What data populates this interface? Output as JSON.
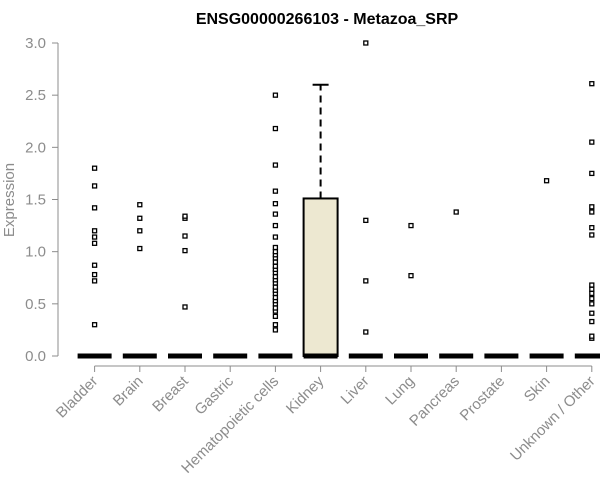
{
  "chart_data": {
    "type": "box",
    "title": "ENSG00000266103 - Metazoa_SRP",
    "xlabel": "",
    "ylabel": "Expression",
    "ylim": [
      0,
      3.0
    ],
    "yticks": [
      "0.0",
      "0.5",
      "1.0",
      "1.5",
      "2.0",
      "2.5",
      "3.0"
    ],
    "categories": [
      "Bladder",
      "Brain",
      "Breast",
      "Gastric",
      "Hematopoietic cells",
      "Kidney",
      "Liver",
      "Lung",
      "Pancreas",
      "Prostate",
      "Skin",
      "Unknown / Other"
    ],
    "boxes": [
      {
        "category": "Bladder",
        "q1": 0,
        "median": 0,
        "q3": 0,
        "whisker_low": 0,
        "whisker_high": 0,
        "outliers": [
          0.3,
          0.72,
          0.78,
          0.87,
          1.08,
          1.14,
          1.2,
          1.42,
          1.63,
          1.8
        ]
      },
      {
        "category": "Brain",
        "q1": 0,
        "median": 0,
        "q3": 0,
        "whisker_low": 0,
        "whisker_high": 0,
        "outliers": [
          1.03,
          1.2,
          1.32,
          1.45
        ]
      },
      {
        "category": "Breast",
        "q1": 0,
        "median": 0,
        "q3": 0,
        "whisker_low": 0,
        "whisker_high": 0,
        "outliers": [
          0.47,
          1.01,
          1.15,
          1.32,
          1.34
        ]
      },
      {
        "category": "Gastric",
        "q1": 0,
        "median": 0,
        "q3": 0,
        "whisker_low": 0,
        "whisker_high": 0,
        "outliers": []
      },
      {
        "category": "Hematopoietic cells",
        "q1": 0,
        "median": 0,
        "q3": 0,
        "whisker_low": 0,
        "whisker_high": 0,
        "outliers": [
          0.25,
          0.3,
          0.38,
          0.43,
          0.46,
          0.5,
          0.53,
          0.56,
          0.6,
          0.63,
          0.66,
          0.7,
          0.73,
          0.76,
          0.8,
          0.83,
          0.86,
          0.9,
          0.94,
          0.97,
          1.0,
          1.04,
          1.14,
          1.25,
          1.36,
          1.46,
          1.58,
          1.83,
          2.18,
          2.5
        ]
      },
      {
        "category": "Kidney",
        "q1": 0,
        "median": 0,
        "q3": 1.51,
        "whisker_low": 0,
        "whisker_high": 2.6,
        "outliers": []
      },
      {
        "category": "Liver",
        "q1": 0,
        "median": 0,
        "q3": 0,
        "whisker_low": 0,
        "whisker_high": 0,
        "outliers": [
          0.23,
          0.72,
          1.3,
          3.0
        ]
      },
      {
        "category": "Lung",
        "q1": 0,
        "median": 0,
        "q3": 0,
        "whisker_low": 0,
        "whisker_high": 0,
        "outliers": [
          0.77,
          1.25
        ]
      },
      {
        "category": "Pancreas",
        "q1": 0,
        "median": 0,
        "q3": 0,
        "whisker_low": 0,
        "whisker_high": 0,
        "outliers": [
          1.38
        ]
      },
      {
        "category": "Prostate",
        "q1": 0,
        "median": 0,
        "q3": 0,
        "whisker_low": 0,
        "whisker_high": 0,
        "outliers": []
      },
      {
        "category": "Skin",
        "q1": 0,
        "median": 0,
        "q3": 0,
        "whisker_low": 0,
        "whisker_high": 0,
        "outliers": [
          1.68
        ]
      },
      {
        "category": "Unknown / Other",
        "q1": 0,
        "median": 0,
        "q3": 0,
        "whisker_low": 0,
        "whisker_high": 0,
        "outliers": [
          0.17,
          0.19,
          0.33,
          0.41,
          0.5,
          0.55,
          0.6,
          0.64,
          0.68,
          1.16,
          1.23,
          1.38,
          1.43,
          1.75,
          2.05,
          2.61
        ]
      }
    ],
    "box_fill": "#ede8d1",
    "grid": false,
    "legend": "none"
  }
}
